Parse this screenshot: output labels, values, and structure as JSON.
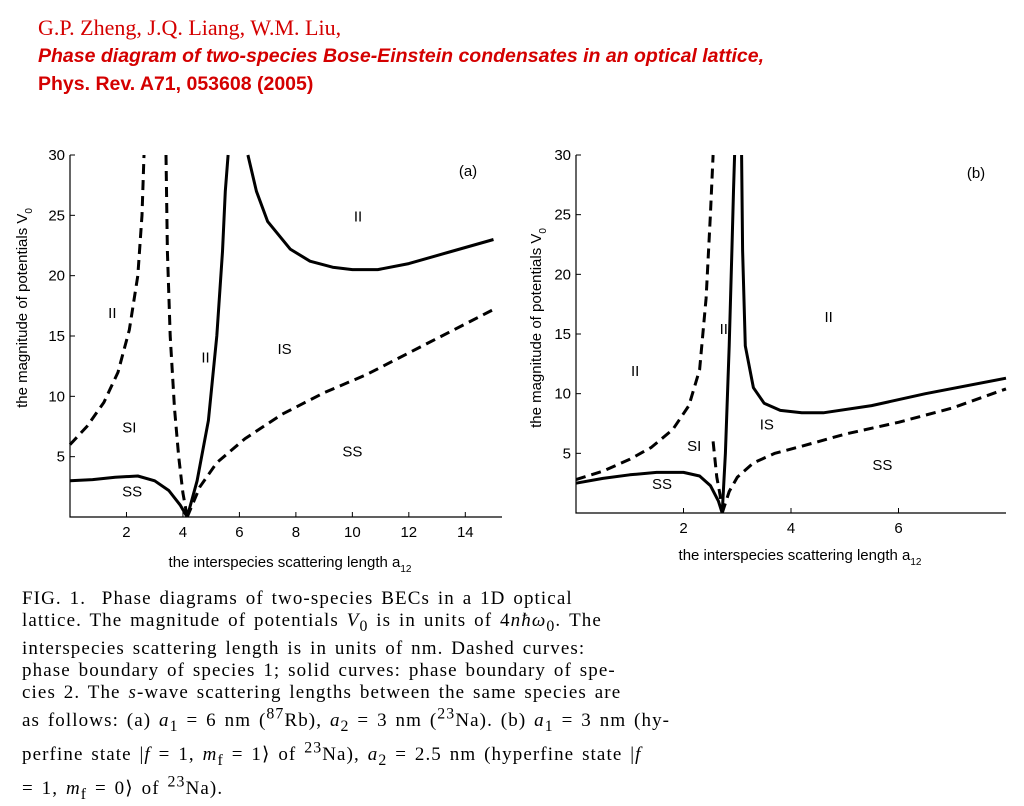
{
  "header": {
    "authors": "G.P. Zheng, J.Q. Liang, W.M. Liu,",
    "title": "Phase diagram of two-species Bose-Einstein condensates in an optical lattice,",
    "journal": "Phys. Rev. A71, 053608 (2005)"
  },
  "chart_data": [
    {
      "type": "line",
      "panel_label": "(a)",
      "xlabel": "the interspecies scattering length a",
      "xlabel_sub": "12",
      "ylabel": "the magnitude of potentials V",
      "ylabel_sub": "0",
      "xlim": [
        0,
        15.3
      ],
      "ylim": [
        0,
        30
      ],
      "xticks": [
        2,
        4,
        6,
        8,
        10,
        12,
        14
      ],
      "yticks": [
        5,
        10,
        15,
        20,
        25,
        30
      ],
      "series": [
        {
          "style": "dashed",
          "x": [
            0,
            0.6,
            1.2,
            1.7,
            2.1,
            2.4,
            2.55,
            2.62
          ],
          "y": [
            6,
            7.5,
            9.5,
            12,
            15.5,
            20,
            25,
            30
          ]
        },
        {
          "style": "dashed",
          "x": [
            3.4,
            3.45,
            3.55,
            3.7,
            3.85,
            4.0,
            4.15
          ],
          "y": [
            30,
            22,
            15,
            9,
            5,
            2,
            0
          ]
        },
        {
          "style": "dashed",
          "x": [
            4.15,
            4.6,
            5.2,
            6.2,
            7.5,
            9.0,
            10.5,
            12.0,
            13.5,
            15.0
          ],
          "y": [
            0,
            2.5,
            4.5,
            6.5,
            8.5,
            10.3,
            11.8,
            13.6,
            15.4,
            17.2
          ]
        },
        {
          "style": "solid",
          "x": [
            0,
            0.8,
            1.6,
            2.4,
            3.0,
            3.5,
            3.9,
            4.15
          ],
          "y": [
            3,
            3.1,
            3.3,
            3.4,
            3.0,
            2.2,
            1.0,
            0
          ]
        },
        {
          "style": "solid",
          "x": [
            4.15,
            4.5,
            4.9,
            5.2,
            5.4,
            5.5,
            5.6
          ],
          "y": [
            0,
            3,
            8,
            15,
            22,
            27,
            30
          ]
        },
        {
          "style": "solid",
          "x": [
            6.3,
            6.6,
            7.0,
            7.8,
            8.5,
            9.3,
            10.0,
            10.9,
            12.0,
            13.5,
            15.0
          ],
          "y": [
            30,
            27,
            24.5,
            22.2,
            21.2,
            20.7,
            20.5,
            20.5,
            21,
            22,
            23
          ]
        }
      ],
      "region_labels": [
        {
          "text": "II",
          "x": 1.5,
          "y": 16.5
        },
        {
          "text": "SI",
          "x": 2.1,
          "y": 7
        },
        {
          "text": "SS",
          "x": 2.2,
          "y": 1.7
        },
        {
          "text": "II",
          "x": 4.8,
          "y": 12.8
        },
        {
          "text": "IS",
          "x": 7.6,
          "y": 13.5
        },
        {
          "text": "SS",
          "x": 10,
          "y": 5
        },
        {
          "text": "II",
          "x": 10.2,
          "y": 24.5
        }
      ]
    },
    {
      "type": "line",
      "panel_label": "(b)",
      "xlabel": "the interspecies scattering length a",
      "xlabel_sub": "12",
      "ylabel": "the magnitude of potentials V",
      "ylabel_sub": "0",
      "xlim": [
        0,
        8
      ],
      "ylim": [
        0,
        30
      ],
      "xticks": [
        2,
        4,
        6
      ],
      "yticks": [
        5,
        10,
        15,
        20,
        25,
        30
      ],
      "series": [
        {
          "style": "dashed",
          "x": [
            0,
            0.5,
            1.0,
            1.4,
            1.8,
            2.1,
            2.3,
            2.42,
            2.5,
            2.55
          ],
          "y": [
            2.8,
            3.5,
            4.5,
            5.5,
            7,
            9,
            12,
            18,
            25,
            30
          ]
        },
        {
          "style": "dashed",
          "x": [
            2.55,
            2.62,
            2.68,
            2.72
          ],
          "y": [
            6,
            3,
            1.5,
            0
          ]
        },
        {
          "style": "dashed",
          "x": [
            2.72,
            2.85,
            3.0,
            3.3,
            3.7,
            4.2,
            5.0,
            6.0,
            7.0,
            8.0
          ],
          "y": [
            0,
            1.8,
            3,
            4.2,
            5,
            5.6,
            6.6,
            7.6,
            8.8,
            10.4
          ]
        },
        {
          "style": "solid",
          "x": [
            0,
            0.5,
            1.0,
            1.5,
            2.0,
            2.3,
            2.5,
            2.65,
            2.72
          ],
          "y": [
            2.5,
            2.9,
            3.2,
            3.4,
            3.4,
            3.1,
            2.3,
            1,
            0
          ]
        },
        {
          "style": "solid",
          "x": [
            2.72,
            2.78,
            2.85,
            2.9,
            2.93,
            2.95
          ],
          "y": [
            0,
            5,
            14,
            22,
            27,
            30
          ]
        },
        {
          "style": "solid",
          "x": [
            3.08,
            3.1,
            3.15,
            3.3,
            3.5,
            3.8,
            4.2,
            4.6,
            5.5,
            6.5,
            8.0
          ],
          "y": [
            30,
            22,
            14,
            10.5,
            9.2,
            8.6,
            8.4,
            8.4,
            9,
            10,
            11.3
          ]
        }
      ],
      "region_labels": [
        {
          "text": "II",
          "x": 1.1,
          "y": 11.5
        },
        {
          "text": "SI",
          "x": 2.2,
          "y": 5.2
        },
        {
          "text": "SS",
          "x": 1.6,
          "y": 2
        },
        {
          "text": "II",
          "x": 2.75,
          "y": 15
        },
        {
          "text": "II",
          "x": 4.7,
          "y": 16
        },
        {
          "text": "IS",
          "x": 3.55,
          "y": 7
        },
        {
          "text": "SS",
          "x": 5.7,
          "y": 3.6
        }
      ]
    }
  ],
  "caption": {
    "fig_label": "FIG. 1.",
    "line1": "Phase diagrams of two-species BECs in a 1D optical",
    "line2a": "lattice. The magnitude of potentials ",
    "V": "V",
    "V_sub": "0",
    "line2b": " is in units of 4",
    "n_hbar_omega": "nħω",
    "omega_sub": "0",
    "line2c": ". The",
    "line3": "interspecies scattering length is in units of nm. Dashed curves:",
    "line4": "phase boundary of species 1; solid curves: phase boundary of spe-",
    "line5a": "cies 2. The ",
    "s_italic": "s",
    "line5b": "-wave scattering lengths between the same species are",
    "line6a": "as follows: (a) ",
    "a1": "a",
    "a1_sub": "1",
    "line6b": " = 6 nm (",
    "rb_sup": "87",
    "rb": "Rb), ",
    "a2": "a",
    "a2_sub": "2",
    "line6c": " = 3 nm (",
    "na_sup": "23",
    "na": "Na). (b) ",
    "line6d": " = 3 nm (hy-",
    "line7a": "perfine state |",
    "f_eq": "f",
    "line7b": " = 1, ",
    "m_f": "m",
    "m_f_sub": "f",
    "line7c": " = 1⟩ of ",
    "line7d": "Na), ",
    "line7e": " = 2.5 nm (hyperfine state |",
    "line8a": "= 1, ",
    "line8b": " = 0⟩ of ",
    "line8c": "Na)."
  }
}
